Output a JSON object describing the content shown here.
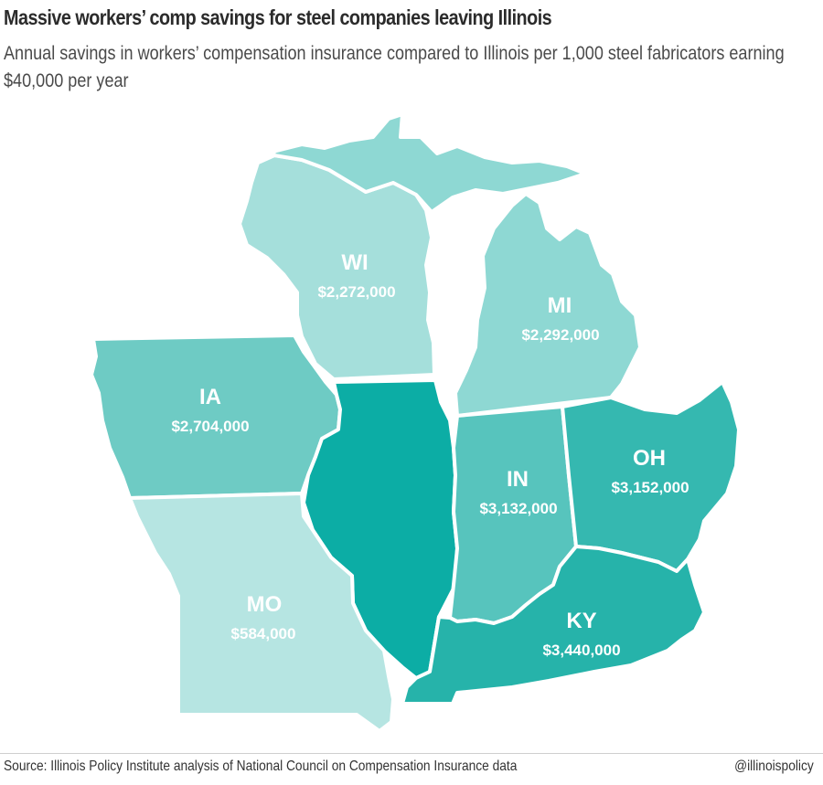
{
  "header": {
    "title": "Massive workers’ comp savings for steel companies leaving Illinois",
    "subtitle": "Annual savings in workers’ compensation insurance compared to Illinois per 1,000 steel fabricators earning $40,000 per year"
  },
  "states": {
    "wi": {
      "abbr": "WI",
      "value": "$2,272,000",
      "color": "#a5dfdb"
    },
    "mi": {
      "abbr": "MI",
      "value": "$2,292,000",
      "color": "#8ed8d3"
    },
    "ia": {
      "abbr": "IA",
      "value": "$2,704,000",
      "color": "#6ecbc4"
    },
    "il": {
      "color": "#0cada5"
    },
    "in": {
      "abbr": "IN",
      "value": "$3,132,000",
      "color": "#57c4bd"
    },
    "oh": {
      "abbr": "OH",
      "value": "$3,152,000",
      "color": "#35b8b0"
    },
    "mo": {
      "abbr": "MO",
      "value": "$584,000",
      "color": "#b6e5e2"
    },
    "ky": {
      "abbr": "KY",
      "value": "$3,440,000",
      "color": "#26b3aa"
    }
  },
  "footer": {
    "source": "Source: Illinois Policy Institute analysis of National Council on Compensation Insurance data",
    "handle": "@illinoispolicy"
  }
}
